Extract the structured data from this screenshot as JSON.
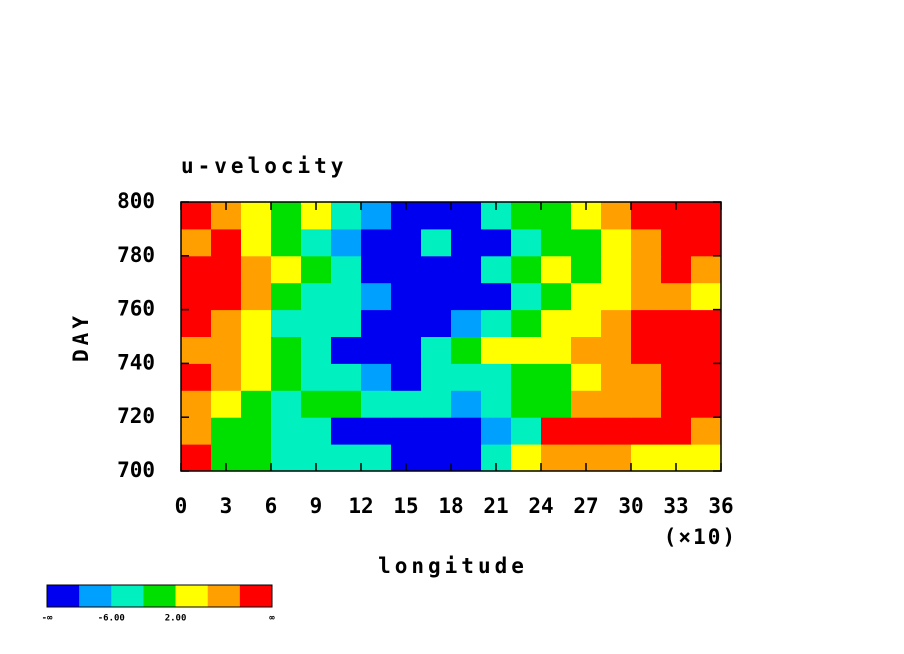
{
  "chart_data": {
    "type": "heatmap",
    "title": "u-velocity",
    "x_label": "longitude",
    "x_multiplier": "(×10)",
    "y_label": "DAY",
    "xlim": [
      0,
      36
    ],
    "xticks": [
      0,
      3,
      6,
      9,
      12,
      15,
      18,
      21,
      24,
      27,
      30,
      33,
      36
    ],
    "ylim": [
      700,
      800
    ],
    "yticks": [
      700,
      720,
      740,
      760,
      780,
      800
    ],
    "xbins": [
      0,
      2,
      4,
      6,
      8,
      10,
      12,
      14,
      16,
      18,
      20,
      22,
      24,
      26,
      28,
      30,
      32,
      34,
      36
    ],
    "ybins": [
      700,
      710,
      720,
      730,
      740,
      750,
      760,
      770,
      780,
      790,
      800
    ],
    "z": [
      [
        12,
        0,
        0,
        -4,
        -4,
        -4,
        -4,
        -12,
        -12,
        -12,
        -4,
        4,
        8,
        8,
        8,
        4,
        4,
        4
      ],
      [
        8,
        0,
        0,
        -4,
        -4,
        -12,
        -12,
        -12,
        -12,
        -12,
        -8,
        -4,
        12,
        12,
        12,
        12,
        12,
        8
      ],
      [
        8,
        4,
        0,
        -4,
        0,
        0,
        -4,
        -4,
        -4,
        -8,
        -4,
        0,
        0,
        8,
        8,
        8,
        12,
        12
      ],
      [
        12,
        8,
        4,
        0,
        -4,
        -4,
        -8,
        -12,
        -4,
        -4,
        -4,
        0,
        0,
        4,
        8,
        8,
        12,
        12
      ],
      [
        8,
        8,
        4,
        0,
        -4,
        -12,
        -12,
        -12,
        -4,
        0,
        4,
        4,
        4,
        8,
        8,
        12,
        12,
        12
      ],
      [
        12,
        8,
        4,
        -4,
        -4,
        -4,
        -12,
        -12,
        -12,
        -8,
        -4,
        0,
        4,
        4,
        8,
        12,
        12,
        12
      ],
      [
        12,
        12,
        8,
        0,
        -4,
        -4,
        -8,
        -12,
        -12,
        -12,
        -12,
        -4,
        0,
        4,
        4,
        8,
        8,
        4
      ],
      [
        12,
        12,
        8,
        4,
        0,
        -4,
        -12,
        -12,
        -12,
        -12,
        -4,
        0,
        4,
        0,
        4,
        8,
        12,
        8
      ],
      [
        8,
        12,
        4,
        0,
        -4,
        -8,
        -12,
        -12,
        -4,
        -12,
        -12,
        -4,
        0,
        0,
        4,
        8,
        12,
        12
      ],
      [
        12,
        8,
        4,
        0,
        4,
        -4,
        -8,
        -12,
        -12,
        -12,
        -4,
        0,
        0,
        4,
        8,
        12,
        12,
        12
      ]
    ],
    "colorbar": {
      "bounds": [
        -10,
        -6,
        -2,
        2,
        6,
        10
      ],
      "colors": [
        "#0000f0",
        "#00a0ff",
        "#00f0c0",
        "#00e000",
        "#ffff00",
        "#ffa000",
        "#ff0000"
      ],
      "ticks": [
        {
          "value": -6,
          "label": "-6.00"
        },
        {
          "value": 2,
          "label": "2.00"
        }
      ],
      "min_label": "-∞",
      "max_label": "∞"
    }
  }
}
